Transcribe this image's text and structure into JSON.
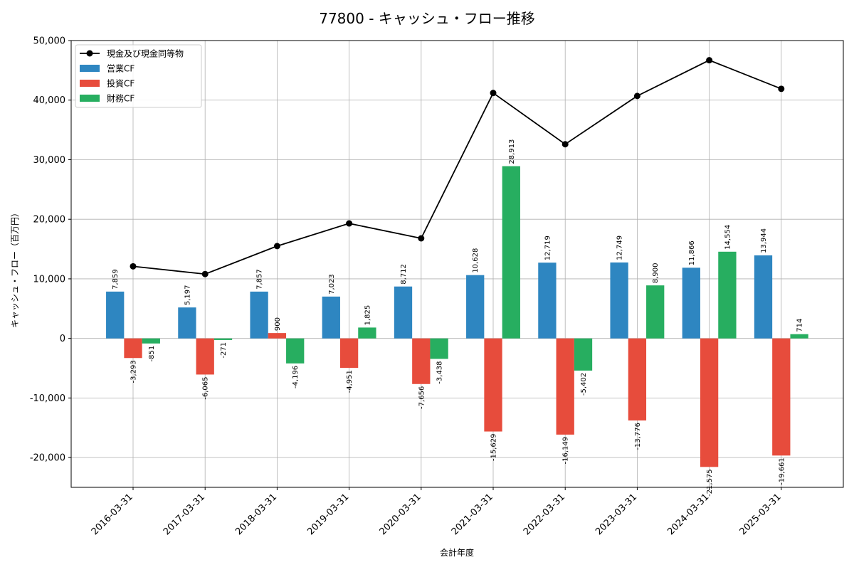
{
  "chart_data": {
    "type": "bar",
    "title": "77800 - キャッシュ・フロー推移",
    "xlabel": "会計年度",
    "ylabel": "キャッシュ・フロー（百万円）",
    "ylim": [
      -25000,
      50000
    ],
    "yticks": [
      -20000,
      -10000,
      0,
      10000,
      20000,
      30000,
      40000,
      50000
    ],
    "ytick_labels": [
      "-20,000",
      "-10,000",
      "0",
      "10,000",
      "20,000",
      "30,000",
      "40,000",
      "50,000"
    ],
    "grid": true,
    "legend_position": "top-left",
    "categories": [
      "2016-03-31",
      "2017-03-31",
      "2018-03-31",
      "2019-03-31",
      "2020-03-31",
      "2021-03-31",
      "2022-03-31",
      "2023-03-31",
      "2024-03-31",
      "2025-03-31"
    ],
    "series": [
      {
        "name": "営業CF",
        "type": "bar",
        "color": "#2e86c1",
        "values": [
          7859,
          5197,
          7857,
          7023,
          8712,
          10628,
          12719,
          12749,
          11866,
          13944
        ],
        "labels": [
          "7,859",
          "5,197",
          "7,857",
          "7,023",
          "8,712",
          "10,628",
          "12,719",
          "12,749",
          "11,866",
          "13,944"
        ]
      },
      {
        "name": "投資CF",
        "type": "bar",
        "color": "#e74c3c",
        "values": [
          -3293,
          -6065,
          900,
          -4951,
          -7656,
          -15629,
          -16149,
          -13776,
          -21575,
          -19661
        ],
        "labels": [
          "-3,293",
          "-6,065",
          "900",
          "-4,951",
          "-7,656",
          "-15,629",
          "-16,149",
          "-13,776",
          "-21,575",
          "-19,661"
        ]
      },
      {
        "name": "財務CF",
        "type": "bar",
        "color": "#27ae60",
        "values": [
          -851,
          -271,
          -4196,
          1825,
          -3438,
          28913,
          -5402,
          8900,
          14554,
          714
        ],
        "labels": [
          "-851",
          "-271",
          "-4,196",
          "1,825",
          "-3,438",
          "28,913",
          "-5,402",
          "8,900",
          "14,554",
          "714"
        ]
      },
      {
        "name": "現金及び現金同等物",
        "type": "line",
        "color": "#000000",
        "values": [
          12100,
          10800,
          15500,
          19300,
          16800,
          41200,
          32600,
          40700,
          46700,
          41900
        ]
      }
    ]
  }
}
